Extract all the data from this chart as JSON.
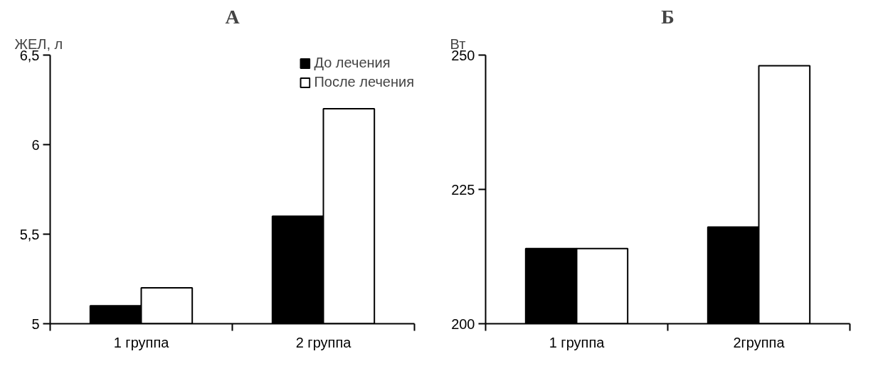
{
  "chart_data": [
    {
      "type": "bar",
      "title": "А",
      "ylabel": "ЖЕЛ, л",
      "categories": [
        "1 группа",
        "2 группа"
      ],
      "series": [
        {
          "name": "До лечения",
          "color": "#000000",
          "values": [
            5.1,
            5.6
          ]
        },
        {
          "name": "После лечения",
          "color": "#ffffff",
          "values": [
            5.2,
            6.2
          ]
        }
      ],
      "ylim": [
        5,
        6.5
      ],
      "yticks": [
        {
          "value": 5,
          "label": "5"
        },
        {
          "value": 5.5,
          "label": "5,5"
        },
        {
          "value": 6,
          "label": "6"
        },
        {
          "value": 6.5,
          "label": "6,5"
        }
      ],
      "grid": false,
      "legend": "top right"
    },
    {
      "type": "bar",
      "title": "Б",
      "ylabel": "Вт",
      "categories": [
        "1 группа",
        "2группа"
      ],
      "series": [
        {
          "color": "#000000",
          "values": [
            214,
            218
          ]
        },
        {
          "color": "#ffffff",
          "values": [
            214,
            248
          ]
        }
      ],
      "ylim": [
        200,
        250
      ],
      "yticks": [
        200,
        225,
        250
      ],
      "grid": false
    }
  ]
}
